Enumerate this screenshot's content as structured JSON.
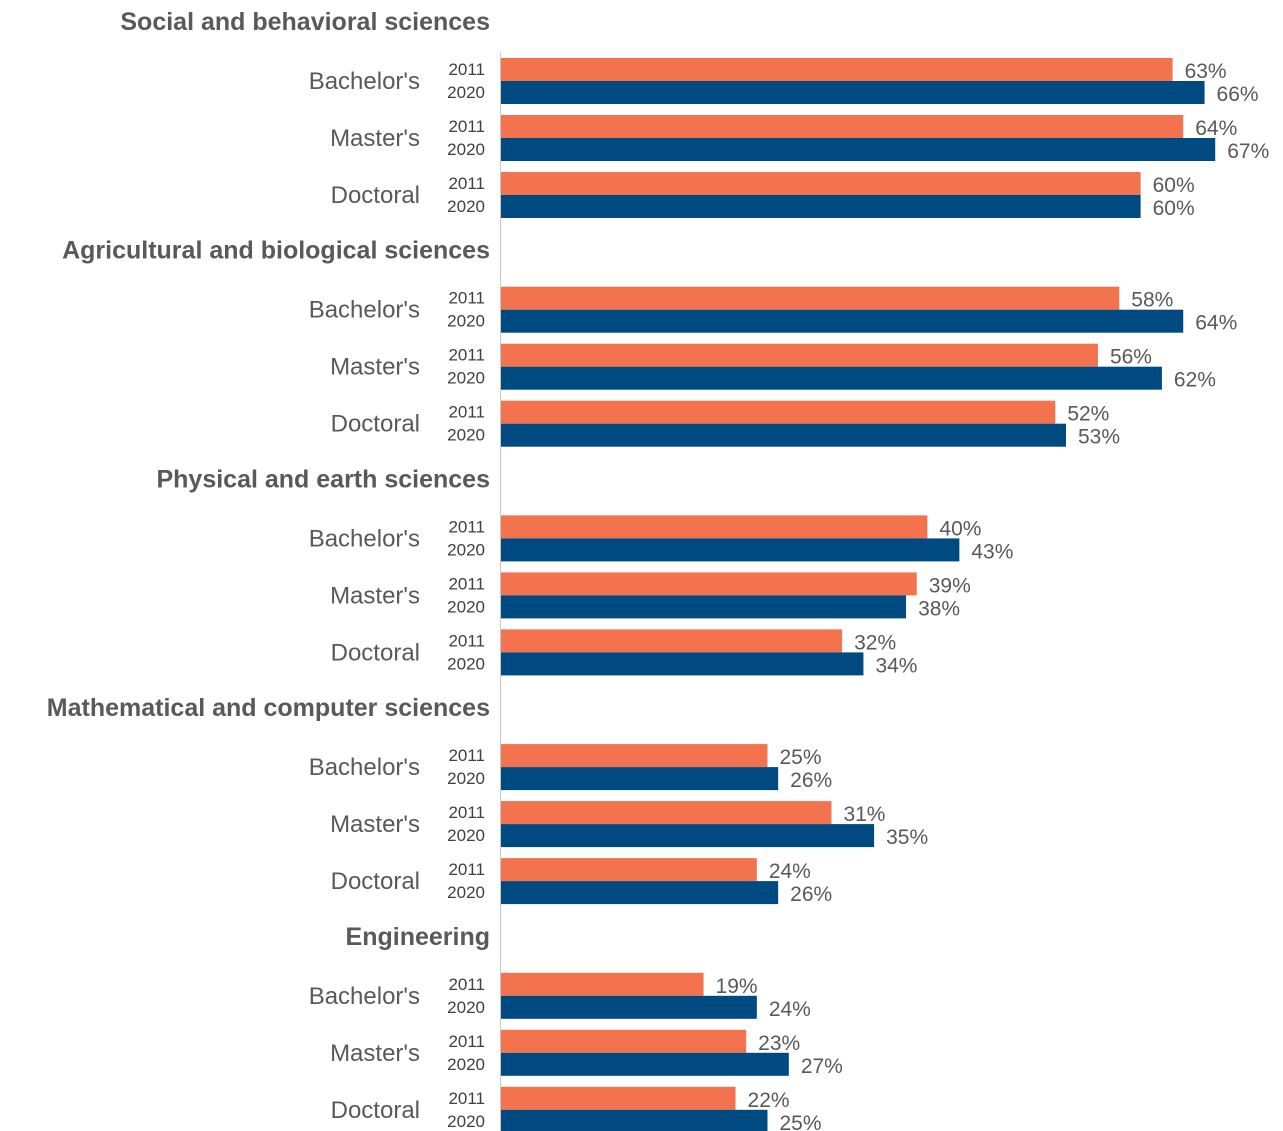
{
  "chart_data": {
    "type": "bar",
    "orientation": "horizontal",
    "value_suffix": "%",
    "series": [
      {
        "year": "2011",
        "color": "#f4734f"
      },
      {
        "year": "2020",
        "color": "#004a82"
      }
    ],
    "groups": [
      {
        "title": "Social and behavioral sciences",
        "degrees": [
          {
            "label": "Bachelor's",
            "values": [
              63,
              66
            ]
          },
          {
            "label": "Master's",
            "values": [
              64,
              67
            ]
          },
          {
            "label": "Doctoral",
            "values": [
              60,
              60
            ]
          }
        ]
      },
      {
        "title": "Agricultural and biological sciences",
        "degrees": [
          {
            "label": "Bachelor's",
            "values": [
              58,
              64
            ]
          },
          {
            "label": "Master's",
            "values": [
              56,
              62
            ]
          },
          {
            "label": "Doctoral",
            "values": [
              52,
              53
            ]
          }
        ]
      },
      {
        "title": "Physical and earth sciences",
        "degrees": [
          {
            "label": "Bachelor's",
            "values": [
              40,
              43
            ]
          },
          {
            "label": "Master's",
            "values": [
              39,
              38
            ]
          },
          {
            "label": "Doctoral",
            "values": [
              32,
              34
            ]
          }
        ]
      },
      {
        "title": "Mathematical and computer sciences",
        "degrees": [
          {
            "label": "Bachelor's",
            "values": [
              25,
              26
            ]
          },
          {
            "label": "Master's",
            "values": [
              31,
              35
            ]
          },
          {
            "label": "Doctoral",
            "values": [
              24,
              26
            ]
          }
        ]
      },
      {
        "title": "Engineering",
        "degrees": [
          {
            "label": "Bachelor's",
            "values": [
              19,
              24
            ]
          },
          {
            "label": "Master's",
            "values": [
              23,
              27
            ]
          },
          {
            "label": "Doctoral",
            "values": [
              22,
              25
            ]
          }
        ]
      }
    ]
  }
}
